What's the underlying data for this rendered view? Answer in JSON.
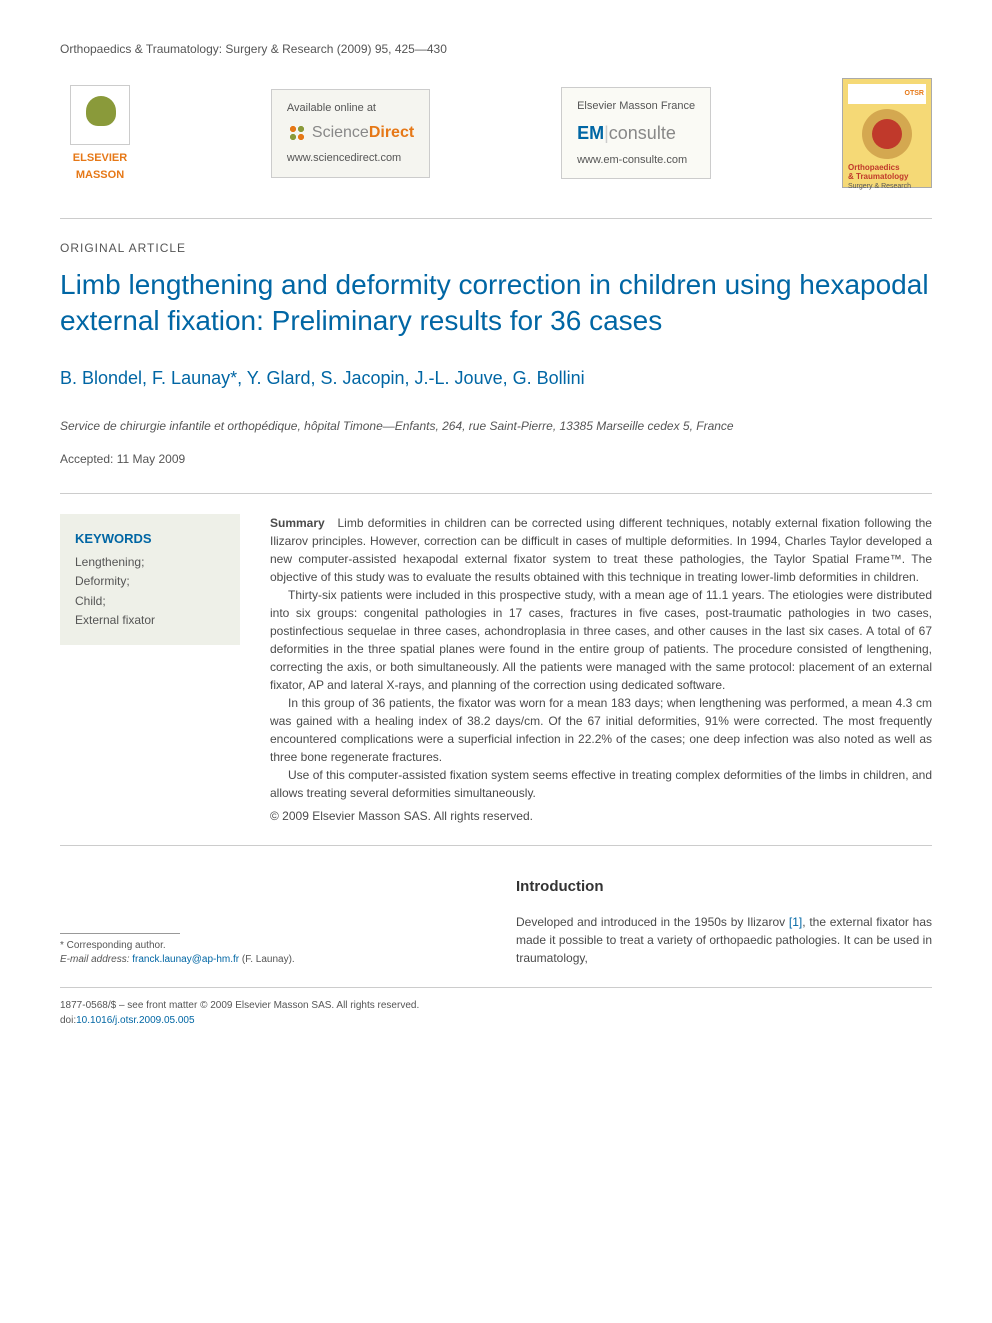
{
  "header": {
    "citation": "Orthopaedics & Traumatology: Surgery & Research (2009) 95, 425—430"
  },
  "logos": {
    "elsevier": {
      "line1": "ELSEVIER",
      "line2": "MASSON"
    },
    "sciencedirect": {
      "available": "Available online at",
      "name_sci": "Science",
      "name_dir": "Direct",
      "url": "www.sciencedirect.com"
    },
    "emconsulte": {
      "header": "Elsevier Masson France",
      "em": "EM",
      "consulte": "consulte",
      "url": "www.em-consulte.com"
    },
    "cover": {
      "badge": "OTSR",
      "title1": "Orthopaedics",
      "title2": "& Traumatology",
      "sub": "Surgery & Research"
    }
  },
  "article": {
    "type": "ORIGINAL ARTICLE",
    "title": "Limb lengthening and deformity correction in children using hexapodal external fixation: Preliminary results for 36 cases",
    "authors": "B. Blondel, F. Launay*, Y. Glard, S. Jacopin, J.-L. Jouve, G. Bollini",
    "affiliation": "Service de chirurgie infantile et orthopédique, hôpital Timone—Enfants, 264, rue Saint-Pierre, 13385 Marseille cedex 5, France",
    "accepted": "Accepted: 11 May 2009"
  },
  "keywords": {
    "heading": "KEYWORDS",
    "items": "Lengthening;\nDeformity;\nChild;\nExternal fixator"
  },
  "summary": {
    "label": "Summary",
    "p1": "Limb deformities in children can be corrected using different techniques, notably external fixation following the Ilizarov principles. However, correction can be difficult in cases of multiple deformities. In 1994, Charles Taylor developed a new computer-assisted hexapodal external fixator system to treat these pathologies, the Taylor Spatial Frame™. The objective of this study was to evaluate the results obtained with this technique in treating lower-limb deformities in children.",
    "p2": "Thirty-six patients were included in this prospective study, with a mean age of 11.1 years. The etiologies were distributed into six groups: congenital pathologies in 17 cases, fractures in five cases, post-traumatic pathologies in two cases, postinfectious sequelae in three cases, achondroplasia in three cases, and other causes in the last six cases. A total of 67 deformities in the three spatial planes were found in the entire group of patients. The procedure consisted of lengthening, correcting the axis, or both simultaneously. All the patients were managed with the same protocol: placement of an external fixator, AP and lateral X-rays, and planning of the correction using dedicated software.",
    "p3": "In this group of 36 patients, the fixator was worn for a mean 183 days; when lengthening was performed, a mean 4.3 cm was gained with a healing index of 38.2 days/cm. Of the 67 initial deformities, 91% were corrected. The most frequently encountered complications were a superficial infection in 22.2% of the cases; one deep infection was also noted as well as three bone regenerate fractures.",
    "p4": "Use of this computer-assisted fixation system seems effective in treating complex deformities of the limbs in children, and allows treating several deformities simultaneously.",
    "copyright": "© 2009 Elsevier Masson SAS. All rights reserved."
  },
  "intro": {
    "heading": "Introduction",
    "text_before": "Developed and introduced in the 1950s by Ilizarov ",
    "ref": "[1]",
    "text_after": ", the external fixator has made it possible to treat a variety of orthopaedic pathologies. It can be used in traumatology,"
  },
  "footnote": {
    "corr": "* Corresponding author.",
    "email_label": "E-mail address: ",
    "email": "franck.launay@ap-hm.fr",
    "email_name": " (F. Launay)."
  },
  "footer": {
    "line1": "1877-0568/$ – see front matter © 2009 Elsevier Masson SAS. All rights reserved.",
    "doi_prefix": "doi:",
    "doi": "10.1016/j.otsr.2009.05.005"
  },
  "colors": {
    "link_blue": "#0066a4",
    "orange": "#e67817",
    "keyword_bg": "#eef0e8",
    "text": "#4a4a4a"
  }
}
